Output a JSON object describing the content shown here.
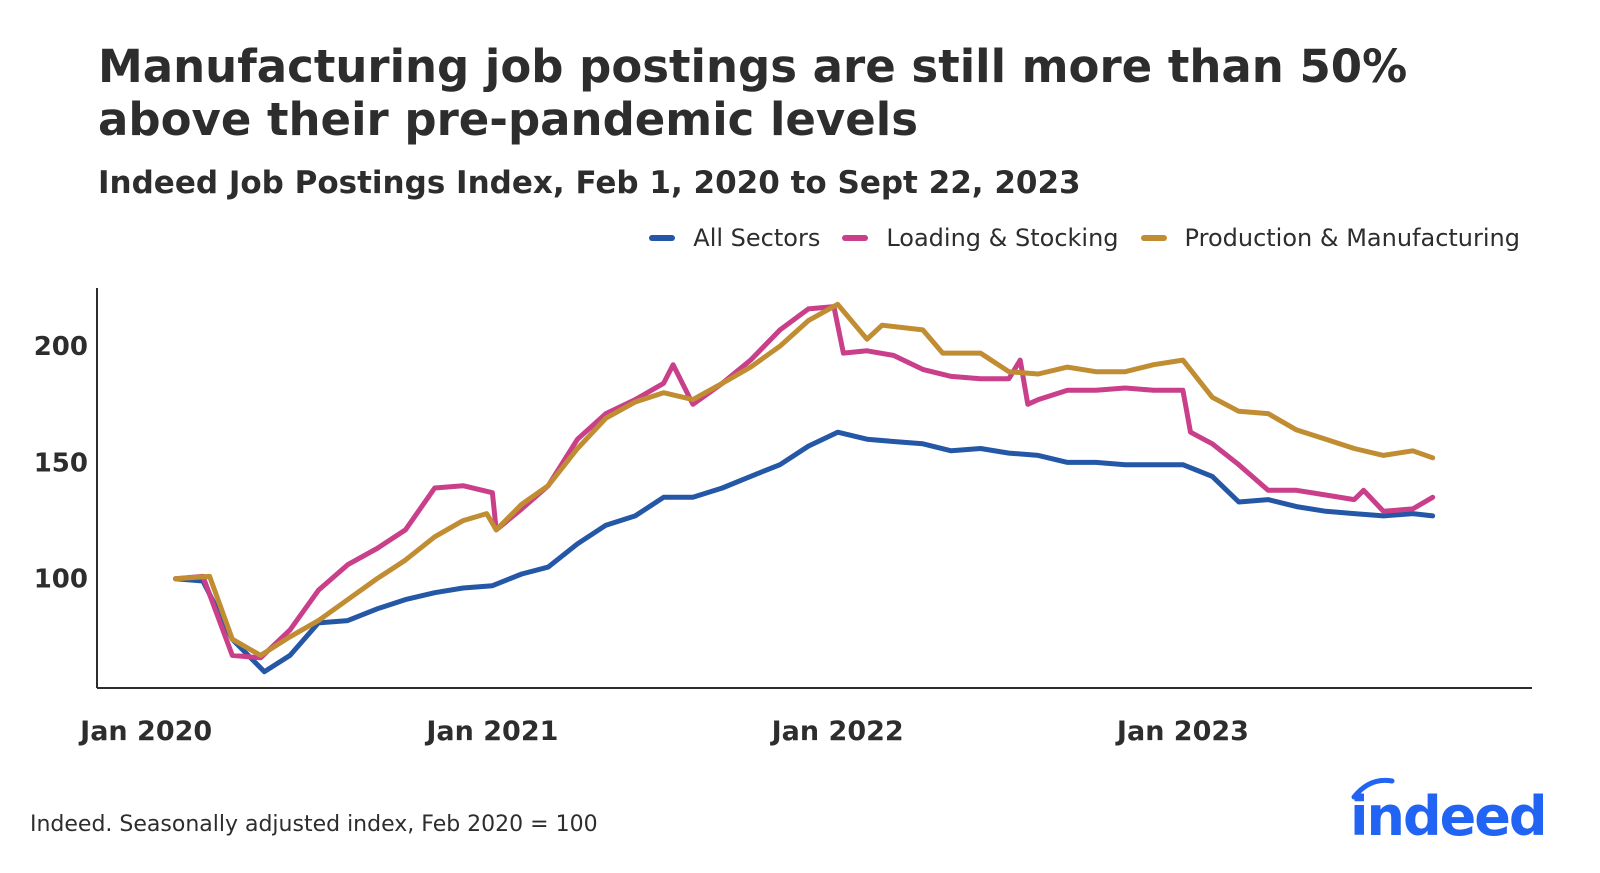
{
  "title": "Manufacturing job postings are still more than 50% above their pre-pandemic levels",
  "subtitle": "Indeed Job Postings Index, Feb 1, 2020 to Sept 22, 2023",
  "source": "Indeed. Seasonally adjusted index, Feb 2020 = 100",
  "logo": "indeed",
  "colors": {
    "text": "#2d2d2d",
    "logo": "#2164f3"
  },
  "chart_data": {
    "type": "line",
    "title": "Manufacturing job postings are still more than 50% above their pre-pandemic levels",
    "subtitle": "Indeed Job Postings Index, Feb 1, 2020 to Sept 22, 2023",
    "xlabel": "",
    "ylabel": "",
    "xlim": [
      "2019-11-10",
      "2024-01-05"
    ],
    "ylim": [
      53,
      225
    ],
    "xticks": [
      {
        "date": "2020-01-01",
        "label": "Jan 2020"
      },
      {
        "date": "2021-01-01",
        "label": "Jan 2021"
      },
      {
        "date": "2022-01-01",
        "label": "Jan 2022"
      },
      {
        "date": "2023-01-01",
        "label": "Jan 2023"
      }
    ],
    "yticks": [
      100,
      150,
      200
    ],
    "grid": false,
    "legend": "top-right",
    "series": [
      {
        "name": "All Sectors",
        "color": "#2557a7",
        "points": [
          [
            "2020-02-01",
            100
          ],
          [
            "2020-03-01",
            99
          ],
          [
            "2020-04-01",
            74
          ],
          [
            "2020-05-05",
            60
          ],
          [
            "2020-06-01",
            67
          ],
          [
            "2020-07-01",
            81
          ],
          [
            "2020-08-01",
            82
          ],
          [
            "2020-09-01",
            87
          ],
          [
            "2020-10-01",
            91
          ],
          [
            "2020-11-01",
            94
          ],
          [
            "2020-12-01",
            96
          ],
          [
            "2021-01-01",
            97
          ],
          [
            "2021-02-01",
            102
          ],
          [
            "2021-03-01",
            105
          ],
          [
            "2021-04-01",
            115
          ],
          [
            "2021-05-01",
            123
          ],
          [
            "2021-06-01",
            127
          ],
          [
            "2021-07-01",
            135
          ],
          [
            "2021-08-01",
            135
          ],
          [
            "2021-09-01",
            139
          ],
          [
            "2021-10-01",
            144
          ],
          [
            "2021-11-01",
            149
          ],
          [
            "2021-12-01",
            157
          ],
          [
            "2022-01-01",
            163
          ],
          [
            "2022-02-01",
            160
          ],
          [
            "2022-03-01",
            159
          ],
          [
            "2022-04-01",
            158
          ],
          [
            "2022-05-01",
            155
          ],
          [
            "2022-06-01",
            156
          ],
          [
            "2022-07-01",
            154
          ],
          [
            "2022-08-01",
            153
          ],
          [
            "2022-09-01",
            150
          ],
          [
            "2022-10-01",
            150
          ],
          [
            "2022-11-01",
            149
          ],
          [
            "2022-12-01",
            149
          ],
          [
            "2023-01-01",
            149
          ],
          [
            "2023-02-01",
            144
          ],
          [
            "2023-03-01",
            133
          ],
          [
            "2023-04-01",
            134
          ],
          [
            "2023-05-01",
            131
          ],
          [
            "2023-06-01",
            129
          ],
          [
            "2023-07-01",
            128
          ],
          [
            "2023-08-01",
            127
          ],
          [
            "2023-09-01",
            128
          ],
          [
            "2023-09-22",
            127
          ]
        ]
      },
      {
        "name": "Loading & Stocking",
        "color": "#c93f8a",
        "points": [
          [
            "2020-02-01",
            100
          ],
          [
            "2020-03-01",
            101
          ],
          [
            "2020-04-01",
            67
          ],
          [
            "2020-05-01",
            66
          ],
          [
            "2020-06-01",
            78
          ],
          [
            "2020-07-01",
            95
          ],
          [
            "2020-08-01",
            106
          ],
          [
            "2020-09-01",
            113
          ],
          [
            "2020-10-01",
            121
          ],
          [
            "2020-11-01",
            139
          ],
          [
            "2020-12-01",
            140
          ],
          [
            "2021-01-01",
            137
          ],
          [
            "2021-01-05",
            121
          ],
          [
            "2021-02-01",
            130
          ],
          [
            "2021-03-01",
            140
          ],
          [
            "2021-04-01",
            160
          ],
          [
            "2021-05-01",
            171
          ],
          [
            "2021-06-01",
            177
          ],
          [
            "2021-07-01",
            184
          ],
          [
            "2021-07-11",
            192
          ],
          [
            "2021-08-01",
            175
          ],
          [
            "2021-09-01",
            184
          ],
          [
            "2021-10-01",
            194
          ],
          [
            "2021-11-01",
            207
          ],
          [
            "2021-12-01",
            216
          ],
          [
            "2021-12-28",
            217
          ],
          [
            "2022-01-07",
            197
          ],
          [
            "2022-02-01",
            198
          ],
          [
            "2022-03-01",
            196
          ],
          [
            "2022-04-01",
            190
          ],
          [
            "2022-05-01",
            187
          ],
          [
            "2022-06-01",
            186
          ],
          [
            "2022-07-01",
            186
          ],
          [
            "2022-07-13",
            194
          ],
          [
            "2022-07-21",
            175
          ],
          [
            "2022-08-01",
            177
          ],
          [
            "2022-09-01",
            181
          ],
          [
            "2022-10-01",
            181
          ],
          [
            "2022-11-01",
            182
          ],
          [
            "2022-12-01",
            181
          ],
          [
            "2023-01-01",
            181
          ],
          [
            "2023-01-09",
            163
          ],
          [
            "2023-02-01",
            158
          ],
          [
            "2023-03-01",
            149
          ],
          [
            "2023-04-01",
            138
          ],
          [
            "2023-05-01",
            138
          ],
          [
            "2023-06-01",
            136
          ],
          [
            "2023-07-01",
            134
          ],
          [
            "2023-07-11",
            138
          ],
          [
            "2023-08-01",
            129
          ],
          [
            "2023-09-01",
            130
          ],
          [
            "2023-09-22",
            135
          ]
        ]
      },
      {
        "name": "Production & Manufacturing",
        "color": "#c18d32",
        "points": [
          [
            "2020-02-01",
            100
          ],
          [
            "2020-03-08",
            101
          ],
          [
            "2020-04-01",
            74
          ],
          [
            "2020-05-01",
            67
          ],
          [
            "2020-06-01",
            75
          ],
          [
            "2020-07-01",
            82
          ],
          [
            "2020-08-01",
            91
          ],
          [
            "2020-09-01",
            100
          ],
          [
            "2020-10-01",
            108
          ],
          [
            "2020-11-01",
            118
          ],
          [
            "2020-12-01",
            125
          ],
          [
            "2020-12-26",
            128
          ],
          [
            "2021-01-05",
            121
          ],
          [
            "2021-02-01",
            132
          ],
          [
            "2021-03-01",
            140
          ],
          [
            "2021-04-01",
            156
          ],
          [
            "2021-05-01",
            169
          ],
          [
            "2021-06-01",
            176
          ],
          [
            "2021-07-01",
            180
          ],
          [
            "2021-08-01",
            177
          ],
          [
            "2021-09-01",
            184
          ],
          [
            "2021-10-01",
            191
          ],
          [
            "2021-11-01",
            200
          ],
          [
            "2021-12-01",
            211
          ],
          [
            "2022-01-01",
            218
          ],
          [
            "2022-02-01",
            203
          ],
          [
            "2022-02-17",
            209
          ],
          [
            "2022-04-01",
            207
          ],
          [
            "2022-04-22",
            197
          ],
          [
            "2022-06-01",
            197
          ],
          [
            "2022-07-01",
            189
          ],
          [
            "2022-08-01",
            188
          ],
          [
            "2022-09-01",
            191
          ],
          [
            "2022-10-01",
            189
          ],
          [
            "2022-11-01",
            189
          ],
          [
            "2022-12-01",
            192
          ],
          [
            "2023-01-01",
            194
          ],
          [
            "2023-02-01",
            178
          ],
          [
            "2023-03-01",
            172
          ],
          [
            "2023-04-01",
            171
          ],
          [
            "2023-05-01",
            164
          ],
          [
            "2023-06-01",
            160
          ],
          [
            "2023-07-01",
            156
          ],
          [
            "2023-08-01",
            153
          ],
          [
            "2023-09-01",
            155
          ],
          [
            "2023-09-22",
            152
          ]
        ]
      }
    ]
  }
}
